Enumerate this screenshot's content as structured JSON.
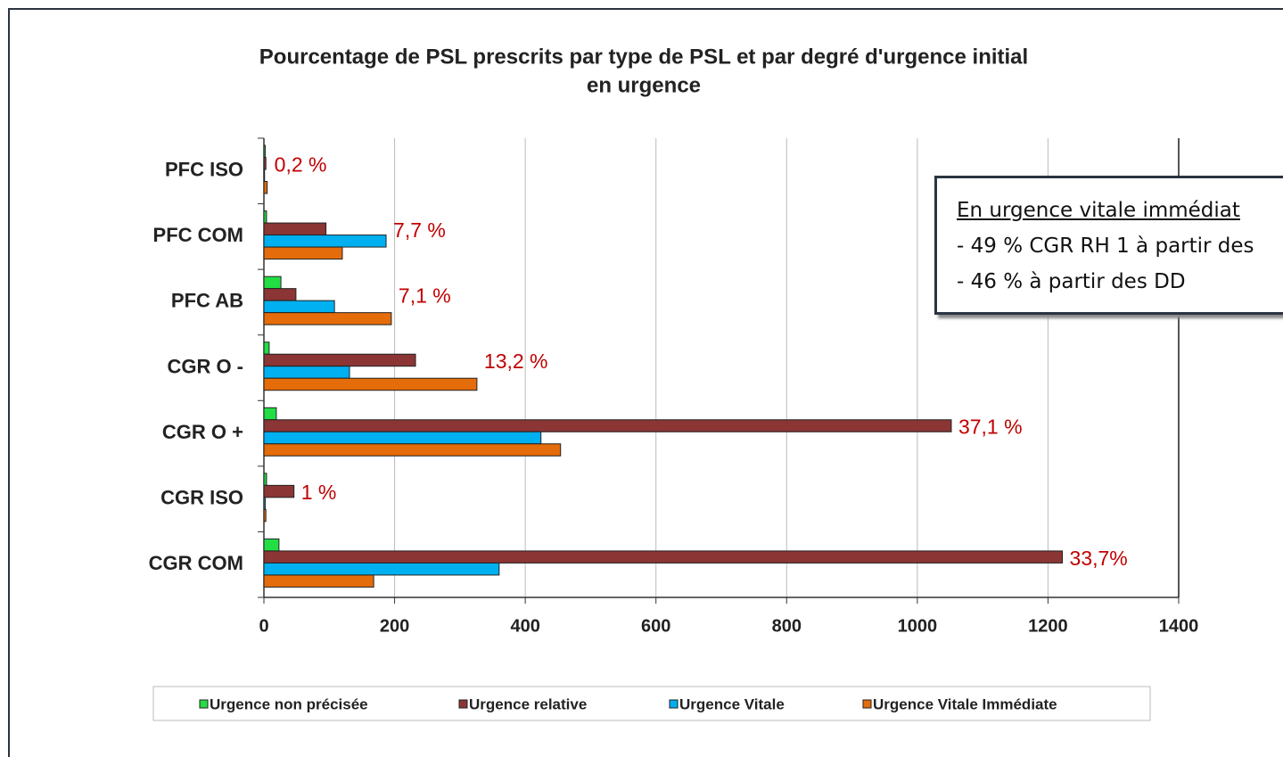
{
  "chart_data": {
    "type": "hbar",
    "title": [
      "Pourcentage de PSL prescrits par type de PSL et par degré d'urgence initial",
      "en urgence"
    ],
    "categories": [
      "PFC ISO",
      "PFC COM",
      "PFC AB",
      "CGR O -",
      "CGR O +",
      "CGR ISO",
      "CGR COM"
    ],
    "series": [
      {
        "name": "Urgence non précisée",
        "color": "#22dd44",
        "values": [
          2,
          4,
          26,
          8,
          19,
          4,
          23
        ]
      },
      {
        "name": "Urgence relative",
        "color": "#8b3535",
        "values": [
          3,
          95,
          49,
          232,
          1052,
          46,
          1222
        ]
      },
      {
        "name": "Urgence Vitale",
        "color": "#00b0f0",
        "values": [
          1,
          187,
          108,
          131,
          424,
          2,
          360
        ]
      },
      {
        "name": "Urgence Vitale Immédiate",
        "color": "#e46c0a",
        "values": [
          5,
          120,
          195,
          326,
          454,
          3,
          168
        ]
      }
    ],
    "category_annotations": [
      "0,2 %",
      "7,7 %",
      "7,1 %",
      "13,2 %",
      "37,1 %",
      "1 %",
      "33,7%"
    ],
    "xlim": [
      0,
      1400
    ],
    "xticks": [
      0,
      200,
      400,
      600,
      800,
      1000,
      1200,
      1400
    ],
    "grid": true,
    "legend": "bottom",
    "textbox": {
      "heading": "En urgence vitale immédiat",
      "lines": [
        "- 49 % CGR RH 1 à partir des",
        "- 46 % à partir des DD"
      ]
    }
  }
}
